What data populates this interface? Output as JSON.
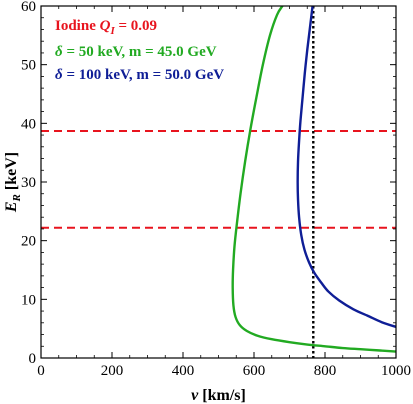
{
  "chart_data": {
    "type": "line",
    "xlabel": {
      "var": "v",
      "unit": "[km/s]"
    },
    "ylabel": {
      "var": "E",
      "sub": "R",
      "unit": "[keV]"
    },
    "xlim": [
      0,
      1000
    ],
    "ylim": [
      0,
      60
    ],
    "xticks": [
      0,
      200,
      400,
      600,
      800,
      1000
    ],
    "yticks": [
      0,
      10,
      20,
      30,
      40,
      50,
      60
    ],
    "grid": false,
    "legend": [
      {
        "text": "Iodine Q",
        "sub": "I",
        "rest": " = 0.09",
        "color": "#e8141e"
      },
      {
        "text": "δ = 50 keV, m = 45.0 GeV",
        "color": "#22aa22"
      },
      {
        "text": "δ = 100 keV, m = 50.0 GeV",
        "color": "#0f1e96"
      }
    ],
    "hlines": [
      {
        "y": 38.7,
        "color": "#e8141e",
        "style": "dashed"
      },
      {
        "y": 22.2,
        "color": "#e8141e",
        "style": "dashed"
      }
    ],
    "vlines": [
      {
        "x": 767,
        "color": "#000000",
        "style": "dotted"
      }
    ],
    "series": [
      {
        "color": "#22aa22",
        "x": [
          1000,
          950,
          900,
          850,
          800,
          750,
          700,
          650,
          610,
          580,
          560,
          548,
          542,
          540,
          541,
          545,
          552,
          562,
          575,
          590,
          607,
          625,
          645,
          665,
          680
        ],
        "y": [
          1.1,
          1.3,
          1.5,
          1.7,
          2.0,
          2.3,
          2.7,
          3.2,
          3.8,
          4.6,
          5.6,
          7.0,
          9.0,
          12.0,
          15.0,
          19.0,
          23.0,
          28.0,
          33.5,
          39.0,
          44.5,
          50.0,
          55.0,
          58.5,
          60.0
        ]
      },
      {
        "color": "#0f1e96",
        "x": [
          1000,
          960,
          920,
          880,
          840,
          810,
          790,
          770,
          755,
          742,
          733,
          727,
          724,
          723,
          724,
          727,
          731,
          737,
          743,
          750,
          757,
          762,
          765
        ],
        "y": [
          5.3,
          6.1,
          7.2,
          8.3,
          9.8,
          11.3,
          12.8,
          14.5,
          16.3,
          18.5,
          21.0,
          24.0,
          27.0,
          30.0,
          33.5,
          37.0,
          40.5,
          44.5,
          48.5,
          52.5,
          56.0,
          58.5,
          60.0
        ]
      }
    ]
  }
}
